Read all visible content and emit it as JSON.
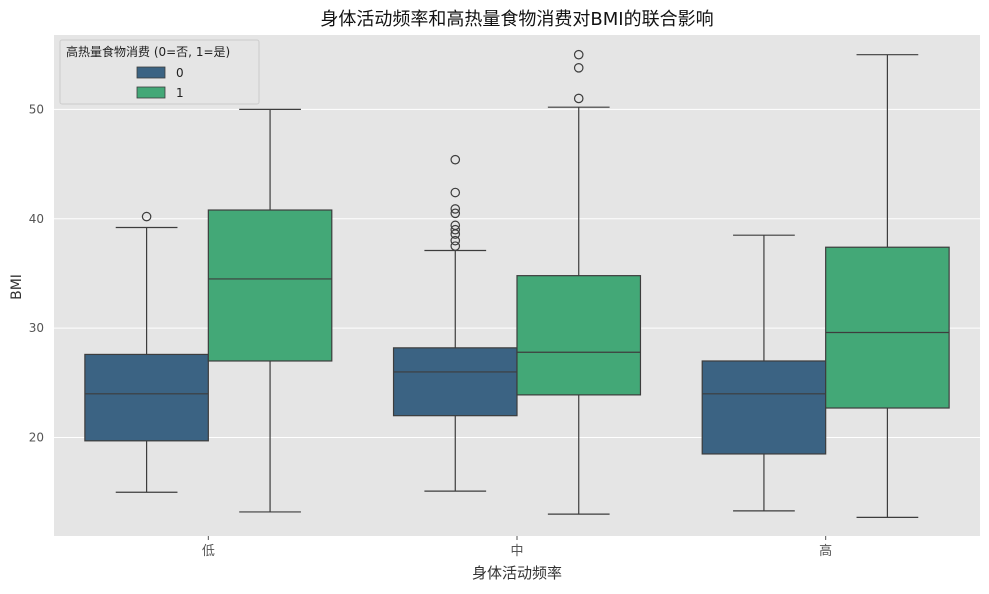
{
  "chart_data": {
    "type": "box",
    "title": "身体活动频率和高热量食物消费对BMI的联合影响",
    "xlabel": "身体活动频率",
    "ylabel": "BMI",
    "categories": [
      "低",
      "中",
      "高"
    ],
    "ylim": [
      11,
      56.8
    ],
    "yticks": [
      20,
      30,
      40,
      50
    ],
    "grid": true,
    "legend": {
      "title": "高热量食物消费 (0=否, 1=是)",
      "placement": "top-left"
    },
    "series": [
      {
        "name": "0",
        "color": "#3b6383",
        "boxes": [
          {
            "category": "低",
            "whisker_low": 15.0,
            "q1": 19.7,
            "median": 24.0,
            "q3": 27.6,
            "whisker_high": 39.2,
            "outliers": [
              40.2
            ]
          },
          {
            "category": "中",
            "whisker_low": 15.1,
            "q1": 22.0,
            "median": 26.0,
            "q3": 28.2,
            "whisker_high": 37.1,
            "outliers": [
              37.5,
              38.0,
              38.6,
              39.0,
              39.4,
              40.5,
              40.9,
              42.4,
              45.4
            ]
          },
          {
            "category": "高",
            "whisker_low": 13.3,
            "q1": 18.5,
            "median": 24.0,
            "q3": 27.0,
            "whisker_high": 38.5,
            "outliers": []
          }
        ]
      },
      {
        "name": "1",
        "color": "#43a877",
        "boxes": [
          {
            "category": "低",
            "whisker_low": 13.2,
            "q1": 27.0,
            "median": 34.5,
            "q3": 40.8,
            "whisker_high": 50.0,
            "outliers": []
          },
          {
            "category": "中",
            "whisker_low": 13.0,
            "q1": 23.9,
            "median": 27.8,
            "q3": 34.8,
            "whisker_high": 50.2,
            "outliers": [
              51.0,
              53.8,
              55.0
            ]
          },
          {
            "category": "高",
            "whisker_low": 12.7,
            "q1": 22.7,
            "median": 29.6,
            "q3": 37.4,
            "whisker_high": 55.0,
            "outliers": []
          }
        ]
      }
    ]
  },
  "colors": {
    "axes_background": "#e5e5e5",
    "grid": "#ffffff",
    "line": "#3d3d3d",
    "tick_label": "#555555",
    "text": "#222222"
  }
}
